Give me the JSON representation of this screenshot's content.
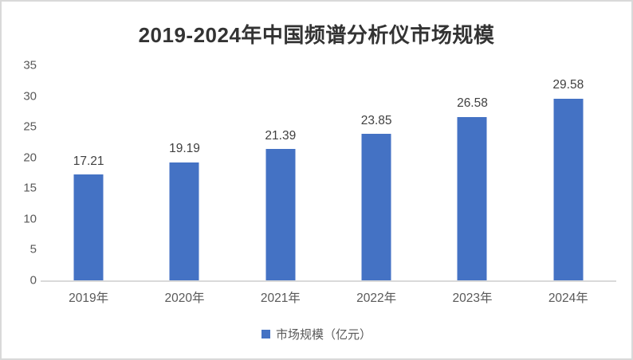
{
  "page": {
    "background_color": "#ffffff",
    "frame_border_color": "#d9d9d9"
  },
  "chart_data": {
    "type": "bar",
    "title": "2019-2024年中国频谱分析仪市场规模",
    "categories": [
      "2019年",
      "2020年",
      "2021年",
      "2022年",
      "2023年",
      "2024年"
    ],
    "series": [
      {
        "name": "市场规模（亿元）",
        "values": [
          17.21,
          19.19,
          21.39,
          23.85,
          26.58,
          29.58
        ]
      }
    ],
    "value_labels": [
      "17.21",
      "19.19",
      "21.39",
      "23.85",
      "26.58",
      "29.58"
    ],
    "xlabel": "",
    "ylabel": "",
    "ylim": [
      0,
      35
    ],
    "yticks": [
      0,
      5,
      10,
      15,
      20,
      25,
      30,
      35
    ],
    "grid": false,
    "legend_position": "bottom",
    "bar_color": "#4472C4",
    "axis_line_color": "#d9d9d9",
    "tick_label_color": "#595959",
    "value_label_color": "#404040",
    "title_color": "#333333"
  },
  "legend": {
    "label": "市场规模（亿元）",
    "swatch_color": "#4472C4"
  }
}
